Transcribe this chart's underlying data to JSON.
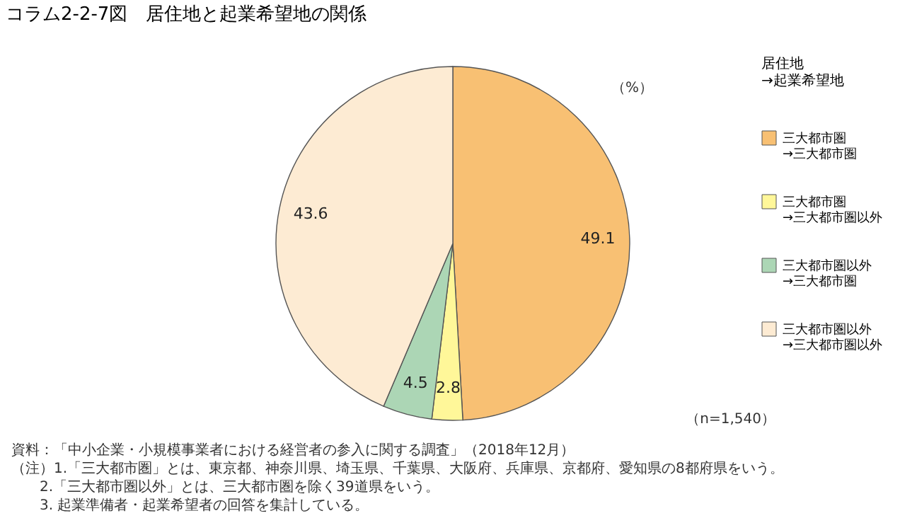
{
  "chart_data": {
    "type": "pie",
    "title": "コラム2-2-7図　居住地と起業希望地の関係",
    "legend_title": "居住地\n→起業希望地",
    "categories": [
      "三大都市圏\n→三大都市圏",
      "三大都市圏\n→三大都市圏以外",
      "三大都市圏以外\n→三大都市圏",
      "三大都市圏以外\n→三大都市圏以外"
    ],
    "values": [
      49.1,
      2.8,
      4.5,
      43.6
    ],
    "colors": [
      "#f8c073",
      "#fff799",
      "#acd6b5",
      "#fdebd3"
    ],
    "data_labels": true,
    "legend": "right",
    "annotations": [
      "（%）",
      "（n=1,540）",
      "資料：「中小企業・小規模事業者における経営者の参入に関する調査」（2018年12月）",
      "（注）1.「三大都市圏」とは、東京都、神奈川県、埼玉県、千葉県、大阪府、兵庫県、京都府、愛知県の8都府県をいう。",
      "2.「三大都市圏以外」とは、三大都市圏を除く39道県をいう。",
      "3. 起業準備者・起業希望者の回答を集計している。"
    ]
  }
}
